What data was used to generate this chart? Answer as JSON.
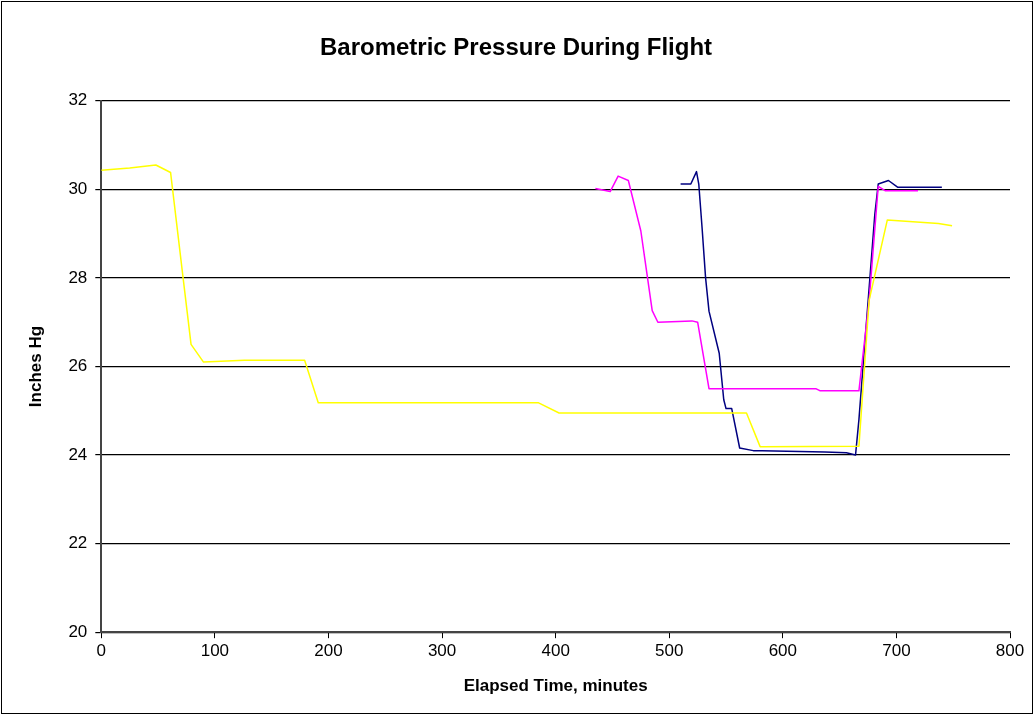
{
  "chart_data": {
    "type": "line",
    "title": "Barometric Pressure During Flight",
    "xlabel": "Elapsed Time, minutes",
    "ylabel": "Inches Hg",
    "xlim": [
      0,
      800
    ],
    "xticks": [
      0,
      100,
      200,
      300,
      400,
      500,
      600,
      700,
      800
    ],
    "ylim": [
      20,
      32
    ],
    "yticks": [
      20,
      22,
      24,
      26,
      28,
      30,
      32
    ],
    "grid": "y",
    "legend": false,
    "marker": "none",
    "line_style": "solid",
    "series": [
      {
        "color": "#ffff00",
        "x": [
          0,
          25,
          48,
          61,
          72,
          79,
          90,
          126,
          179,
          191,
          316,
          385,
          403,
          568,
          580,
          667,
          676,
          692,
          737,
          749
        ],
        "values": [
          30.43,
          30.48,
          30.55,
          30.38,
          28.0,
          26.5,
          26.1,
          26.14,
          26.14,
          25.18,
          25.18,
          25.18,
          24.95,
          24.95,
          24.19,
          24.2,
          27.5,
          29.31,
          29.23,
          29.18
        ]
      },
      {
        "color": "#ff00ff",
        "x": [
          435,
          448,
          455,
          464,
          475,
          485,
          490,
          520,
          525,
          535,
          629,
          633,
          667,
          676,
          684,
          690,
          719
        ],
        "values": [
          30.02,
          29.95,
          30.3,
          30.2,
          29.06,
          27.26,
          27.0,
          27.03,
          27.0,
          25.5,
          25.5,
          25.45,
          25.45,
          27.5,
          30.07,
          29.97,
          29.97
        ]
      },
      {
        "color": "#000080",
        "x": [
          510,
          519,
          524,
          526,
          529,
          532,
          535,
          544,
          548,
          550,
          555,
          562,
          574,
          637,
          656,
          664,
          667,
          681,
          684,
          693,
          701,
          740
        ],
        "values": [
          30.12,
          30.12,
          30.4,
          30.12,
          29.1,
          28.0,
          27.25,
          26.3,
          25.25,
          25.05,
          25.05,
          24.16,
          24.1,
          24.07,
          24.05,
          24.0,
          24.8,
          29.44,
          30.12,
          30.2,
          30.05,
          30.05
        ]
      }
    ]
  }
}
